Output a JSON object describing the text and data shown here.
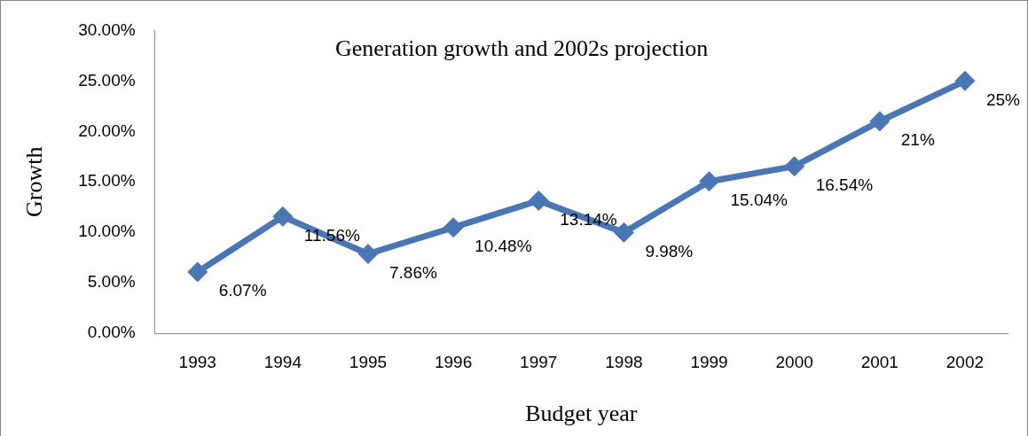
{
  "chart_data": {
    "type": "line",
    "title": "Generation growth and 2002s projection",
    "xlabel": "Budget year",
    "ylabel": "Growth",
    "categories": [
      "1993",
      "1994",
      "1995",
      "1996",
      "1997",
      "1998",
      "1999",
      "2000",
      "2001",
      "2002"
    ],
    "series": [
      {
        "color": "#4a77b4",
        "values": [
          6.07,
          11.56,
          7.86,
          10.48,
          13.14,
          9.98,
          15.04,
          16.54,
          21,
          25
        ],
        "value_labels": [
          "6.07%",
          "11.56%",
          "7.86%",
          "10.48%",
          "13.14%",
          "9.98%",
          "15.04%",
          "16.54%",
          "21%",
          "25%"
        ]
      }
    ],
    "ylim": [
      0,
      30
    ],
    "yticks": [
      {
        "value": 0,
        "label": "0.00%"
      },
      {
        "value": 5,
        "label": "5.00%"
      },
      {
        "value": 10,
        "label": "10.00%"
      },
      {
        "value": 15,
        "label": "15.00%"
      },
      {
        "value": 20,
        "label": "20.00%"
      },
      {
        "value": 25,
        "label": "25.00%"
      },
      {
        "value": 30,
        "label": "30.00%"
      }
    ],
    "grid": false,
    "legend": false,
    "marker": "diamond",
    "line_style": "solid"
  }
}
